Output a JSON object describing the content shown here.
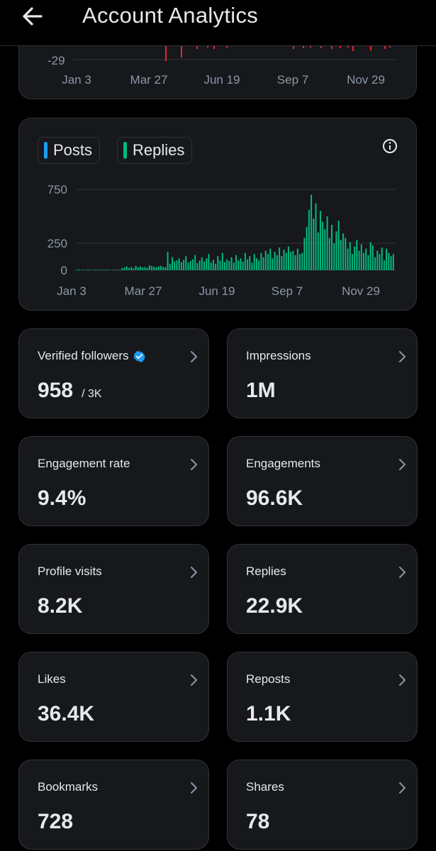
{
  "header": {
    "title": "Account Analytics"
  },
  "top_chart": {
    "y_tick_label": "-29",
    "x_ticks": [
      "Jan 3",
      "Mar 27",
      "Jun 19",
      "Sep 7",
      "Nov 29"
    ],
    "bar_color": "#f4212e"
  },
  "legend": {
    "posts": "Posts",
    "replies": "Replies",
    "posts_color": "#1d9bf0",
    "replies_color": "#00ba7c"
  },
  "chart_data": {
    "type": "bar",
    "title": "",
    "xlabel": "",
    "ylabel": "",
    "ylim": [
      0,
      750
    ],
    "y_ticks": [
      "750",
      "250",
      "0"
    ],
    "x_ticks": [
      "Jan 3",
      "Mar 27",
      "Jun 19",
      "Sep 7",
      "Nov 29"
    ],
    "grid": true,
    "series": [
      {
        "name": "Posts",
        "values": []
      },
      {
        "name": "Replies",
        "values": [
          5,
          8,
          3,
          6,
          4,
          7,
          5,
          3,
          6,
          4,
          5,
          7,
          4,
          6,
          5,
          3,
          4,
          6,
          5,
          4,
          20,
          25,
          35,
          22,
          30,
          18,
          40,
          28,
          33,
          25,
          30,
          22,
          45,
          38,
          30,
          26,
          35,
          40,
          30,
          28,
          170,
          60,
          120,
          80,
          90,
          110,
          75,
          95,
          130,
          70,
          85,
          100,
          140,
          65,
          90,
          120,
          80,
          110,
          150,
          70,
          95,
          60,
          130,
          90,
          160,
          75,
          100,
          85,
          120,
          70,
          140,
          90,
          110,
          80,
          160,
          100,
          130,
          70,
          150,
          110,
          90,
          160,
          120,
          180,
          150,
          200,
          110,
          170,
          140,
          210,
          130,
          190,
          160,
          220,
          170,
          180,
          140,
          200,
          150,
          160,
          300,
          400,
          560,
          700,
          480,
          620,
          350,
          550,
          450,
          380,
          500,
          300,
          420,
          250,
          360,
          460,
          280,
          340,
          300,
          200,
          260,
          150,
          220,
          280,
          180,
          240,
          160,
          200,
          140,
          260,
          230,
          120,
          180,
          150,
          210,
          90,
          200,
          160,
          130,
          150
        ]
      }
    ]
  },
  "stats": [
    {
      "label": "Verified followers",
      "value": "958",
      "sub": "/ 3K",
      "verified": true
    },
    {
      "label": "Impressions",
      "value": "1M"
    },
    {
      "label": "Engagement rate",
      "value": "9.4%"
    },
    {
      "label": "Engagements",
      "value": "96.6K"
    },
    {
      "label": "Profile visits",
      "value": "8.2K"
    },
    {
      "label": "Replies",
      "value": "22.9K"
    },
    {
      "label": "Likes",
      "value": "36.4K"
    },
    {
      "label": "Reposts",
      "value": "1.1K"
    },
    {
      "label": "Bookmarks",
      "value": "728"
    },
    {
      "label": "Shares",
      "value": "78"
    }
  ]
}
